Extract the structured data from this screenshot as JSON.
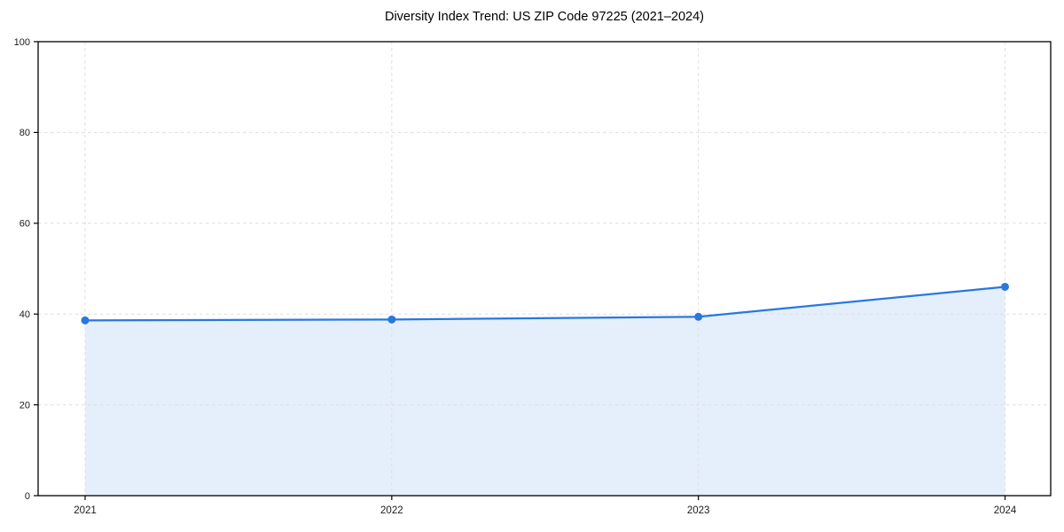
{
  "figure": {
    "background": "#ffffff"
  },
  "chart_data": {
    "type": "area",
    "title": "Diversity Index Trend: US ZIP Code 97225 (2021–2024)",
    "x": [
      "2021",
      "2022",
      "2023",
      "2024"
    ],
    "values": [
      38.6,
      38.8,
      39.4,
      46.0
    ],
    "xlabel": "",
    "ylabel": "",
    "ylim": [
      0,
      100
    ],
    "yticks": [
      0,
      20,
      40,
      60,
      80,
      100
    ],
    "grid": "dashed, both axes",
    "legend": "none",
    "marker": "circle",
    "colors": {
      "line": "#2878e0",
      "fill": "#2878e0",
      "fill_opacity": 0.12,
      "grid": "#dedede",
      "spine": "#000000",
      "text": "#1a1a1a",
      "background": "#ffffff"
    }
  }
}
